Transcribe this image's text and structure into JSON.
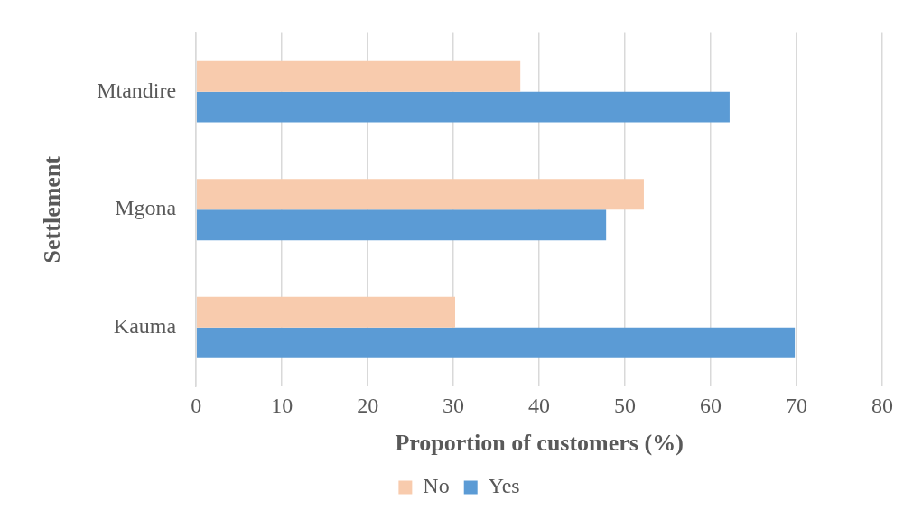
{
  "chart_data": {
    "type": "bar",
    "orientation": "horizontal",
    "xlabel": "Proportion of customers (%)",
    "ylabel": "Settlement",
    "categories": [
      "Mtandire",
      "Mgona",
      "Kauma"
    ],
    "series": [
      {
        "name": "No",
        "color": "#f8cbad",
        "values": [
          37.8,
          52.2,
          30.2
        ]
      },
      {
        "name": "Yes",
        "color": "#5b9bd5",
        "values": [
          62.2,
          47.8,
          69.8
        ]
      }
    ],
    "xlim": [
      0,
      80
    ],
    "xticks": [
      0,
      10,
      20,
      30,
      40,
      50,
      60,
      70,
      80
    ],
    "grid": "x",
    "legend": "bottom"
  }
}
